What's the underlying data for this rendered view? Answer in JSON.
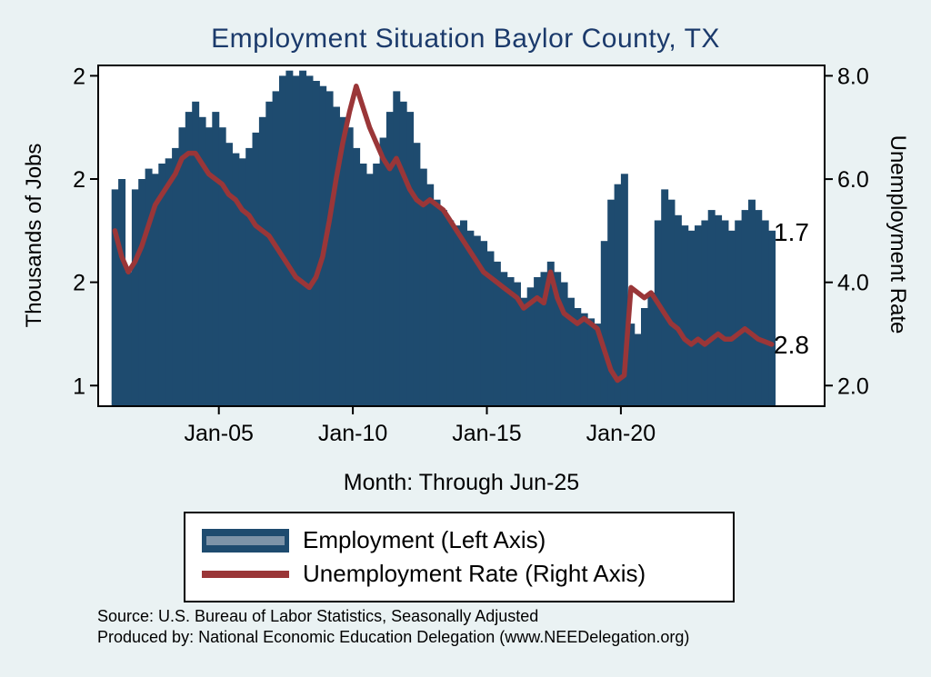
{
  "chart_data": {
    "type": "combo",
    "title": "Employment Situation Baylor  County, TX",
    "xlabel": "Month: Through Jun-25",
    "ylabel_left": "Thousands of Jobs",
    "ylabel_right": "Unemployment Rate",
    "months": [
      "Jan-01",
      "Apr-01",
      "Jul-01",
      "Oct-01",
      "Jan-02",
      "Apr-02",
      "Jul-02",
      "Oct-02",
      "Jan-03",
      "Apr-03",
      "Jul-03",
      "Oct-03",
      "Jan-04",
      "Apr-04",
      "Jul-04",
      "Oct-04",
      "Jan-05",
      "Apr-05",
      "Jul-05",
      "Oct-05",
      "Jan-06",
      "Apr-06",
      "Jul-06",
      "Oct-06",
      "Jan-07",
      "Apr-07",
      "Jul-07",
      "Oct-07",
      "Jan-08",
      "Apr-08",
      "Jul-08",
      "Oct-08",
      "Jan-09",
      "Apr-09",
      "Jul-09",
      "Oct-09",
      "Jan-10",
      "Apr-10",
      "Jul-10",
      "Oct-10",
      "Jan-11",
      "Apr-11",
      "Jul-11",
      "Oct-11",
      "Jan-12",
      "Apr-12",
      "Jul-12",
      "Oct-12",
      "Jan-13",
      "Apr-13",
      "Jul-13",
      "Oct-13",
      "Jan-14",
      "Apr-14",
      "Jul-14",
      "Oct-14",
      "Jan-15",
      "Apr-15",
      "Jul-15",
      "Oct-15",
      "Jan-16",
      "Apr-16",
      "Jul-16",
      "Oct-16",
      "Jan-17",
      "Apr-17",
      "Jul-17",
      "Oct-17",
      "Jan-18",
      "Apr-18",
      "Jul-18",
      "Oct-18",
      "Jan-19",
      "Apr-19",
      "Jul-19",
      "Oct-19",
      "Jan-20",
      "Apr-20",
      "Jul-20",
      "Oct-20",
      "Jan-21",
      "Apr-21",
      "Jul-21",
      "Oct-21",
      "Jan-22",
      "Apr-22",
      "Jul-22",
      "Oct-22",
      "Jan-23",
      "Apr-23",
      "Jul-23",
      "Oct-23",
      "Jan-24",
      "Apr-24",
      "Jul-24",
      "Oct-24",
      "Jan-25",
      "Apr-25",
      "Jun-25"
    ],
    "series": [
      {
        "name": "Employment (Left Axis)",
        "type": "bar",
        "axis": "left",
        "values": [
          1.78,
          1.8,
          1.62,
          1.78,
          1.8,
          1.82,
          1.81,
          1.83,
          1.84,
          1.86,
          1.9,
          1.93,
          1.95,
          1.92,
          1.9,
          1.93,
          1.9,
          1.87,
          1.85,
          1.84,
          1.86,
          1.89,
          1.92,
          1.95,
          1.97,
          2.0,
          2.01,
          2.0,
          2.01,
          2.0,
          1.99,
          1.98,
          1.97,
          1.94,
          1.92,
          1.9,
          1.86,
          1.83,
          1.81,
          1.83,
          1.88,
          1.93,
          1.97,
          1.95,
          1.93,
          1.87,
          1.82,
          1.79,
          1.76,
          1.74,
          1.72,
          1.71,
          1.72,
          1.7,
          1.69,
          1.68,
          1.66,
          1.64,
          1.62,
          1.61,
          1.6,
          1.57,
          1.59,
          1.61,
          1.62,
          1.64,
          1.62,
          1.6,
          1.57,
          1.55,
          1.54,
          1.53,
          1.52,
          1.68,
          1.76,
          1.79,
          1.81,
          1.52,
          1.5,
          1.55,
          1.58,
          1.72,
          1.78,
          1.76,
          1.73,
          1.71,
          1.7,
          1.71,
          1.72,
          1.74,
          1.73,
          1.72,
          1.7,
          1.72,
          1.74,
          1.76,
          1.74,
          1.72,
          1.7
        ]
      },
      {
        "name": "Unemployment Rate (Right Axis)",
        "type": "line",
        "axis": "right",
        "values": [
          5.0,
          4.5,
          4.2,
          4.4,
          4.7,
          5.1,
          5.5,
          5.7,
          5.9,
          6.1,
          6.4,
          6.5,
          6.5,
          6.3,
          6.1,
          6.0,
          5.9,
          5.7,
          5.6,
          5.4,
          5.3,
          5.1,
          5.0,
          4.9,
          4.7,
          4.5,
          4.3,
          4.1,
          4.0,
          3.9,
          4.1,
          4.5,
          5.2,
          6.0,
          6.7,
          7.3,
          7.8,
          7.4,
          7.0,
          6.7,
          6.4,
          6.2,
          6.4,
          6.1,
          5.8,
          5.6,
          5.5,
          5.6,
          5.5,
          5.4,
          5.2,
          5.0,
          4.8,
          4.6,
          4.4,
          4.2,
          4.1,
          4.0,
          3.9,
          3.8,
          3.7,
          3.5,
          3.6,
          3.7,
          3.6,
          4.2,
          3.7,
          3.4,
          3.3,
          3.2,
          3.3,
          3.2,
          3.1,
          2.7,
          2.3,
          2.1,
          2.2,
          3.9,
          3.8,
          3.7,
          3.8,
          3.6,
          3.4,
          3.2,
          3.1,
          2.9,
          2.8,
          2.9,
          2.8,
          2.9,
          3.0,
          2.9,
          2.9,
          3.0,
          3.1,
          3.0,
          2.9,
          2.85,
          2.8
        ]
      }
    ],
    "x_ticks": [
      {
        "value": 2005.0,
        "label": "Jan-05"
      },
      {
        "value": 2010.0,
        "label": "Jan-10"
      },
      {
        "value": 2015.0,
        "label": "Jan-15"
      },
      {
        "value": 2020.0,
        "label": "Jan-20"
      }
    ],
    "left_ticks": [
      {
        "value": 2.0,
        "label": "2"
      },
      {
        "value": 1.8,
        "label": "2"
      },
      {
        "value": 1.6,
        "label": "2"
      },
      {
        "value": 1.4,
        "label": "1"
      }
    ],
    "right_ticks": [
      {
        "value": 8.0,
        "label": "8.0"
      },
      {
        "value": 6.0,
        "label": "6.0"
      },
      {
        "value": 4.0,
        "label": "4.0"
      },
      {
        "value": 2.0,
        "label": "2.0"
      }
    ],
    "end_labels": {
      "employment": "1.7",
      "unemployment": "2.8"
    },
    "layout": {
      "x_start": 2001.0,
      "x_step": 0.25,
      "xlim": [
        2000.5,
        2027.6
      ],
      "left_ylim": [
        1.36,
        2.02
      ],
      "right_ylim": [
        1.601,
        8.201
      ],
      "grid": false,
      "legend_position": "bottom"
    }
  },
  "colors": {
    "background": "#eaf2f3",
    "plot_background": "#ffffff",
    "bar": "#1e4b6f",
    "line": "#9a3638",
    "title": "#1b3a6b",
    "legend_stripe": "#7d93a8",
    "axis": "#000000"
  },
  "footer": {
    "source_line": "Source: U.S. Bureau of Labor Statistics, Seasonally Adjusted",
    "produced_line": "Produced by: National Economic Education Delegation (www.NEEDelegation.org)"
  }
}
